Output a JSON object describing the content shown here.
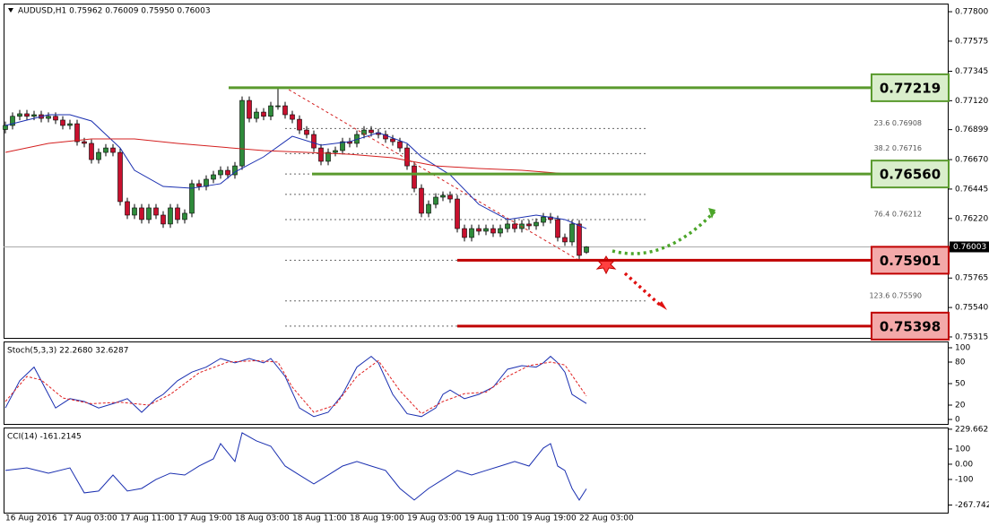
{
  "chart_data": [
    {
      "type": "candlestick",
      "header": "AUDUSD,H1  0.75962 0.76009 0.75950 0.76003",
      "categories": [
        "16 Aug 2016",
        null,
        null,
        null,
        null,
        null,
        null,
        null,
        "17 Aug 03:00",
        null,
        null,
        null,
        null,
        null,
        null,
        null,
        "17 Aug 11:00",
        null,
        null,
        null,
        null,
        null,
        null,
        null,
        "17 Aug 19:00",
        null,
        null,
        null,
        null,
        null,
        null,
        null,
        "18 Aug 03:00",
        null,
        null,
        null,
        null,
        null,
        null,
        null,
        "18 Aug 11:00",
        null,
        null,
        null,
        null,
        null,
        null,
        null,
        "18 Aug 19:00",
        null,
        null,
        null,
        null,
        null,
        null,
        null,
        "19 Aug 03:00",
        null,
        null,
        null,
        null,
        null,
        null,
        null,
        "19 Aug 11:00",
        null,
        null,
        null,
        null,
        null,
        null,
        null,
        "19 Aug 19:00",
        null,
        null,
        null,
        null,
        null,
        null,
        null,
        "22 Aug 03:00",
        null
      ],
      "open": [
        0.769,
        0.76931,
        0.77001,
        0.7702,
        0.77001,
        0.77013,
        0.76985,
        0.77001,
        0.76972,
        0.76931,
        0.76944,
        0.76807,
        0.76794,
        0.7667,
        0.76725,
        0.76759,
        0.76725,
        0.76349,
        0.76246,
        0.76301,
        0.76212,
        0.76301,
        0.76246,
        0.76178,
        0.76301,
        0.76212,
        0.7626,
        0.76486,
        0.76465,
        0.7652,
        0.76554,
        0.76588,
        0.76554,
        0.76622,
        0.77122,
        0.76985,
        0.77033,
        0.77001,
        0.77081,
        0.77081,
        0.77013,
        0.76978,
        0.76896,
        0.76862,
        0.76759,
        0.76657,
        0.76725,
        0.76739,
        0.76807,
        0.76794,
        0.76862,
        0.76896,
        0.76876,
        0.76862,
        0.76828,
        0.76807,
        0.76759,
        0.76622,
        0.76451,
        0.7626,
        0.76328,
        0.76383,
        0.76397,
        0.76369,
        0.76143,
        0.76075,
        0.76143,
        0.76123,
        0.76143,
        0.76109,
        0.76143,
        0.76178,
        0.76143,
        0.76178,
        0.76164,
        0.76191,
        0.76232,
        0.76212,
        0.76075,
        0.76041,
        0.76178,
        0.75962
      ],
      "high": [
        0.76961,
        0.77031,
        0.7705,
        0.7705,
        0.77043,
        0.77043,
        0.77031,
        0.77031,
        0.77002,
        0.76974,
        0.76974,
        0.76837,
        0.76824,
        0.76755,
        0.76789,
        0.76789,
        0.76755,
        0.76379,
        0.76331,
        0.76331,
        0.76331,
        0.76331,
        0.76276,
        0.76331,
        0.76331,
        0.7629,
        0.76516,
        0.76516,
        0.7655,
        0.76584,
        0.76618,
        0.76618,
        0.76652,
        0.77152,
        0.77152,
        0.77063,
        0.77063,
        0.77111,
        0.77219,
        0.77111,
        0.77043,
        0.77008,
        0.76926,
        0.76892,
        0.76789,
        0.76755,
        0.76769,
        0.76837,
        0.76837,
        0.76892,
        0.76926,
        0.76926,
        0.76906,
        0.76892,
        0.76858,
        0.76837,
        0.76789,
        0.76652,
        0.76481,
        0.76358,
        0.76413,
        0.76427,
        0.76427,
        0.76399,
        0.76173,
        0.76173,
        0.76173,
        0.76173,
        0.76173,
        0.76173,
        0.76208,
        0.76208,
        0.76208,
        0.76208,
        0.76221,
        0.76262,
        0.76262,
        0.76242,
        0.76105,
        0.76208,
        0.76208,
        0.76009
      ],
      "low": [
        0.7687,
        0.76901,
        0.76971,
        0.76971,
        0.76971,
        0.76955,
        0.76955,
        0.76942,
        0.76901,
        0.76901,
        0.76777,
        0.76764,
        0.7664,
        0.7664,
        0.76695,
        0.76695,
        0.76319,
        0.76216,
        0.76216,
        0.76182,
        0.76182,
        0.76216,
        0.76148,
        0.76148,
        0.76182,
        0.76182,
        0.7623,
        0.76435,
        0.76435,
        0.7649,
        0.76524,
        0.76524,
        0.76524,
        0.76592,
        0.76955,
        0.76955,
        0.76971,
        0.76971,
        0.77051,
        0.76983,
        0.76948,
        0.76866,
        0.76832,
        0.76729,
        0.76627,
        0.76627,
        0.76695,
        0.76709,
        0.76764,
        0.76764,
        0.76832,
        0.76846,
        0.76832,
        0.76798,
        0.76777,
        0.76729,
        0.76592,
        0.76421,
        0.7623,
        0.7623,
        0.76298,
        0.76353,
        0.76339,
        0.76113,
        0.76045,
        0.76045,
        0.76093,
        0.76093,
        0.76079,
        0.76079,
        0.76113,
        0.76113,
        0.76113,
        0.76134,
        0.76134,
        0.76161,
        0.76182,
        0.76045,
        0.76011,
        0.76011,
        0.75901,
        0.7595
      ],
      "close": [
        0.76931,
        0.77001,
        0.7702,
        0.77001,
        0.77013,
        0.76985,
        0.77001,
        0.76972,
        0.76931,
        0.76944,
        0.76807,
        0.76794,
        0.7667,
        0.76725,
        0.76759,
        0.76725,
        0.76349,
        0.76246,
        0.76301,
        0.76212,
        0.76301,
        0.76246,
        0.76178,
        0.76301,
        0.76212,
        0.7626,
        0.76486,
        0.76465,
        0.7652,
        0.76554,
        0.76588,
        0.76554,
        0.76622,
        0.77122,
        0.76985,
        0.77033,
        0.77001,
        0.77081,
        0.77081,
        0.77013,
        0.76978,
        0.76896,
        0.76862,
        0.76759,
        0.76657,
        0.76725,
        0.76739,
        0.76807,
        0.76794,
        0.76862,
        0.76896,
        0.76876,
        0.76862,
        0.76828,
        0.76807,
        0.76759,
        0.76622,
        0.76451,
        0.7626,
        0.76328,
        0.76383,
        0.76397,
        0.76369,
        0.76143,
        0.76075,
        0.76143,
        0.76123,
        0.76143,
        0.76109,
        0.76143,
        0.76178,
        0.76143,
        0.76178,
        0.76164,
        0.76191,
        0.76232,
        0.76212,
        0.76075,
        0.76041,
        0.76178,
        0.75938,
        0.76003
      ],
      "up_color": "#2e8b3a",
      "down_color": "#c8102e",
      "ylim": [
        0.75301,
        0.77862
      ],
      "yticks": [
        {
          "value": 0.778,
          "label": "0.77800"
        },
        0.77575,
        0.77345,
        {
          "value": 0.7712,
          "label": "0.77120"
        },
        0.76899,
        {
          "value": 0.7667,
          "label": "0.76670"
        },
        0.76445,
        {
          "value": 0.7622,
          "label": "0.76220"
        },
        0.75765,
        {
          "value": 0.7554,
          "label": "0.75540"
        },
        0.75315
      ],
      "current_price": 0.76003,
      "moving_averages": [
        {
          "color": "#1a2fb0",
          "x": [
            0,
            6,
            9,
            12,
            16,
            18,
            22,
            26,
            30,
            32,
            36,
            40,
            44,
            48,
            52,
            56,
            58,
            62,
            66,
            70,
            74,
            78,
            81
          ],
          "values": [
            0.76931,
            0.77013,
            0.77013,
            0.76965,
            0.76759,
            0.76588,
            0.76465,
            0.76451,
            0.76486,
            0.76575,
            0.76691,
            0.76848,
            0.7678,
            0.76807,
            0.76876,
            0.76794,
            0.76691,
            0.76554,
            0.76328,
            0.76212,
            0.76246,
            0.76212,
            0.76143
          ]
        },
        {
          "color": "#d42020",
          "x": [
            0,
            6,
            12,
            18,
            24,
            30,
            36,
            42,
            48,
            54,
            60,
            66,
            72,
            80
          ],
          "values": [
            0.76725,
            0.76794,
            0.76828,
            0.76828,
            0.76794,
            0.76766,
            0.76739,
            0.76725,
            0.76711,
            0.76684,
            0.76622,
            0.76602,
            0.76588,
            0.76554
          ]
        }
      ],
      "levels": [
        {
          "value": 0.77219,
          "color": "#5a9a2e",
          "box": "#d9eecb"
        },
        {
          "value": {
            "value": 0.7656,
            "label": "0.76560"
          },
          "color": "#5a9a2e",
          "box": "#d9eecb"
        },
        {
          "value": 0.75901,
          "color": "#c00000",
          "box": "#f3a9a9"
        },
        {
          "value": 0.75398,
          "color": "#c00000",
          "box": "#f3a9a9"
        }
      ],
      "fib_levels": [
        {
          "value": 0.76908,
          "label": "23.6  0.76908"
        },
        {
          "value": 0.76716,
          "label": "38.2  0.76716"
        },
        0.7656,
        0.76404,
        {
          "value": 0.76212,
          "label": "76.4  0.76212"
        },
        0.75901,
        {
          "value": 0.7559,
          "label": "123.6  0.75590"
        },
        0.75398
      ]
    },
    {
      "type": "line",
      "title": "Stoch(5,3,3) 22.2680 32.6287",
      "ylim": [
        -7.5,
        107.5
      ],
      "yticks": [
        100,
        80,
        50,
        20,
        0
      ],
      "series": [
        {
          "color": "#1a2fb0",
          "style": "solid",
          "x": [
            0,
            2,
            4,
            6,
            7,
            9,
            11,
            13,
            15,
            17,
            19,
            21,
            22,
            24,
            26,
            28,
            30,
            32,
            34,
            36,
            37,
            39,
            41,
            43,
            45,
            47,
            49,
            51,
            52,
            54,
            56,
            58,
            60,
            61,
            62,
            64,
            66,
            68,
            70,
            72,
            74,
            75,
            76,
            77,
            78,
            79,
            81
          ],
          "values": [
            16,
            54,
            73,
            35,
            16,
            29,
            25,
            16,
            22,
            29,
            10,
            29,
            35,
            54,
            66,
            73,
            85,
            79,
            85,
            79,
            85,
            60,
            16,
            4,
            10,
            35,
            73,
            88,
            79,
            35,
            8,
            4,
            16,
            35,
            41,
            29,
            35,
            45,
            70,
            75,
            73,
            79,
            88,
            79,
            66,
            35,
            22.268
          ]
        },
        {
          "color": "#e02020",
          "style": "dashed",
          "x": [
            0,
            3,
            5,
            8,
            12,
            16,
            20,
            23,
            27,
            31,
            35,
            38,
            40,
            43,
            46,
            49,
            52,
            55,
            58,
            61,
            64,
            67,
            70,
            73,
            76,
            78,
            81
          ],
          "values": [
            25,
            60,
            55,
            30,
            22,
            24,
            20,
            35,
            65,
            80,
            82,
            80,
            45,
            10,
            20,
            60,
            82,
            40,
            8,
            25,
            36,
            38,
            60,
            75,
            80,
            76,
            32.6287
          ]
        }
      ]
    },
    {
      "type": "line",
      "title": "CCI(14) -161.2145",
      "ylim": [
        -318,
        235
      ],
      "yticks": [
        229.6627,
        100,
        {
          "value": 0,
          "label": "0.00"
        },
        -100,
        -267.7423
      ],
      "series": [
        {
          "color": "#1a2fb0",
          "style": "solid",
          "x": [
            0,
            3,
            6,
            9,
            11,
            13,
            15,
            17,
            19,
            21,
            23,
            25,
            27,
            29,
            30,
            32,
            33,
            35,
            37,
            39,
            41,
            43,
            45,
            47,
            49,
            51,
            53,
            55,
            57,
            59,
            61,
            63,
            65,
            67,
            69,
            71,
            73,
            75,
            76,
            77,
            78,
            79,
            80,
            81
          ],
          "values": [
            -41,
            -24,
            -59,
            -24,
            -188,
            -176,
            -71,
            -176,
            -159,
            -100,
            -59,
            -71,
            -12,
            35,
            135,
            18,
            206,
            153,
            118,
            -12,
            -71,
            -129,
            -71,
            -12,
            18,
            -12,
            -41,
            -159,
            -235,
            -159,
            -100,
            -41,
            -71,
            -41,
            -12,
            18,
            -12,
            106,
            135,
            -12,
            -41,
            -159,
            -235,
            -161.2145
          ]
        }
      ]
    }
  ]
}
